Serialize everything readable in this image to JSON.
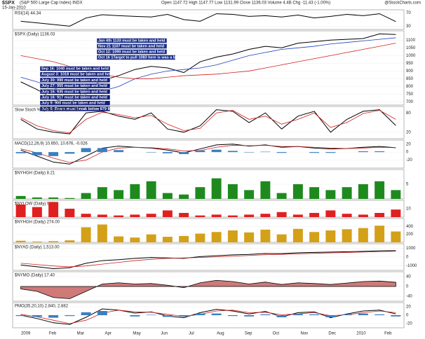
{
  "header": {
    "symbol": "$SPX",
    "name": "(S&P 500 Large Cap Index) INDX",
    "date": "15-Jan-2010",
    "quote": "Open 1147.72  High 1147.77  Low 1131.99  Close 1136.03  Volume 4.4B  Chg -11.43 (-1.00%)",
    "source": "@StockCharts.com"
  },
  "x_axis": {
    "labels": [
      "2009",
      "Feb",
      "Mar",
      "Apr",
      "May",
      "Jun",
      "Jul",
      "Aug",
      "Sep",
      "Oct",
      "Nov",
      "Dec",
      "2010",
      "Feb"
    ]
  },
  "chart_data": [
    {
      "type": "line",
      "title": "RSI(14) 44.34",
      "ylim": [
        20,
        80
      ],
      "yticks": [
        30,
        70
      ],
      "series": [
        {
          "color": "#000000",
          "values": [
            45,
            40,
            35,
            30,
            55,
            65,
            62,
            60,
            58,
            66,
            50,
            45,
            68,
            66,
            60,
            62,
            58,
            64,
            55,
            60,
            66,
            62,
            68,
            44
          ]
        }
      ]
    },
    {
      "type": "line",
      "title": "$SPX (Daily) 1136.03",
      "ylim": [
        680,
        1160
      ],
      "yticks": [
        700,
        750,
        800,
        850,
        900,
        950,
        1000,
        1050,
        1100
      ],
      "series": [
        {
          "color": "#000000",
          "values": [
            830,
            780,
            720,
            690,
            780,
            840,
            870,
            910,
            930,
            920,
            890,
            960,
            990,
            1010,
            1040,
            1060,
            1050,
            1080,
            1090,
            1100,
            1105,
            1110,
            1140,
            1136
          ]
        },
        {
          "color": "#1f3fbf",
          "values": [
            860,
            830,
            790,
            760,
            750,
            770,
            800,
            850,
            880,
            900,
            910,
            920,
            940,
            970,
            1000,
            1020,
            1040,
            1050,
            1060,
            1075,
            1085,
            1095,
            1105,
            1115
          ]
        },
        {
          "color": "#d02020",
          "values": [
            1000,
            980,
            960,
            930,
            900,
            880,
            860,
            850,
            850,
            860,
            870,
            875,
            880,
            890,
            900,
            920,
            940,
            960,
            980,
            1000,
            1020,
            1040,
            1060,
            1080
          ]
        }
      ],
      "annotations": [
        "Jan 4th 1133 must be taken and held",
        "Nov 21 1107 must be taken and held",
        "Oct 12: 1090 must be taken and held",
        "Oct 16 1Target to pull 1083 here is was a battle ground",
        "Sep 16: 1040 must be taken and held",
        "August 3: 1018 must be taken and held",
        "July 30: 990 must be taken and held",
        "July 27: 955 must be taken and held",
        "July 16: 935 must be taken and held",
        "July 16: 917 must be taken and held",
        "July 9: 900 must be taken and held",
        "July 9: Bears must break below 879 885"
      ]
    },
    {
      "type": "line",
      "title": "Slow Stoch %K(14,3) 86.84, 41.24",
      "ylim": [
        0,
        100
      ],
      "yticks": [
        20,
        80
      ],
      "series": [
        {
          "color": "#000000",
          "values": [
            60,
            30,
            20,
            15,
            80,
            85,
            70,
            60,
            80,
            30,
            20,
            40,
            90,
            85,
            50,
            80,
            30,
            70,
            85,
            20,
            60,
            85,
            90,
            41
          ]
        },
        {
          "color": "#d02020",
          "values": [
            65,
            40,
            25,
            18,
            60,
            82,
            75,
            65,
            72,
            45,
            25,
            32,
            80,
            88,
            60,
            70,
            45,
            60,
            80,
            35,
            50,
            78,
            88,
            60
          ]
        }
      ]
    },
    {
      "type": "macd",
      "title": "MACD(12,26,9) 10.650, 10.676, -0.026",
      "ylim": [
        -40,
        30
      ],
      "yticks": [
        -20,
        0,
        20
      ],
      "series": [
        {
          "color": "#000000",
          "values": [
            5,
            -10,
            -25,
            -30,
            -10,
            10,
            15,
            12,
            10,
            5,
            -2,
            8,
            18,
            20,
            15,
            18,
            12,
            14,
            10,
            8,
            9,
            12,
            14,
            11
          ]
        },
        {
          "color": "#d02020",
          "values": [
            8,
            -2,
            -15,
            -26,
            -20,
            0,
            10,
            12,
            11,
            8,
            3,
            4,
            12,
            17,
            16,
            17,
            14,
            14,
            12,
            10,
            9,
            10,
            12,
            11
          ]
        },
        {
          "color": "#3a7fc0",
          "bars": true,
          "values": [
            -3,
            -8,
            -10,
            -4,
            10,
            10,
            5,
            0,
            -1,
            -3,
            -5,
            4,
            6,
            3,
            -1,
            1,
            -2,
            0,
            -2,
            -2,
            0,
            2,
            2,
            0
          ]
        }
      ]
    },
    {
      "type": "bar",
      "title": "$NYHGH (Daily) 8.21",
      "ylim": [
        0,
        10
      ],
      "yticks": [
        5
      ],
      "series": [
        {
          "color": "#1e8a1e",
          "values": [
            1,
            0.5,
            0.5,
            0.3,
            2,
            4,
            3,
            5,
            6,
            2,
            1.5,
            4,
            7,
            5,
            3,
            6,
            2,
            5,
            4,
            3,
            4,
            5,
            6,
            3
          ]
        }
      ]
    },
    {
      "type": "bar",
      "title": "$NYLOW (Daily) 9.44",
      "ylim": [
        0,
        20
      ],
      "yticks": [
        10
      ],
      "series": [
        {
          "color": "#e02020",
          "values": [
            15,
            12,
            18,
            10,
            4,
            3,
            2,
            3,
            4,
            8,
            5,
            2,
            3,
            2,
            3,
            4,
            6,
            3,
            5,
            8,
            4,
            3,
            5,
            9
          ]
        }
      ]
    },
    {
      "type": "bar",
      "title": "$NYHGH (Daily) 274.00",
      "ylim": [
        0,
        600
      ],
      "yticks": [
        200,
        400
      ],
      "series": [
        {
          "color": "#d4a017",
          "values": [
            40,
            20,
            30,
            50,
            380,
            450,
            150,
            120,
            200,
            140,
            160,
            220,
            260,
            300,
            250,
            320,
            200,
            340,
            260,
            300,
            330,
            360,
            420,
            274
          ]
        }
      ]
    },
    {
      "type": "line",
      "title": "$NYAD (Daily) 1,513.00",
      "ylim": [
        -1500,
        1500
      ],
      "yticks": [
        -1000,
        0,
        1000
      ],
      "series": [
        {
          "color": "#000000",
          "values": [
            -900,
            -1100,
            -1300,
            -1200,
            -700,
            -400,
            -300,
            -150,
            -50,
            -100,
            -150,
            50,
            150,
            250,
            300,
            400,
            380,
            480,
            520,
            560,
            600,
            640,
            700,
            720
          ]
        },
        {
          "color": "#d02020",
          "values": [
            -700,
            -850,
            -1000,
            -1100,
            -1000,
            -800,
            -600,
            -400,
            -250,
            -150,
            -100,
            -50,
            20,
            100,
            180,
            260,
            310,
            360,
            420,
            470,
            520,
            560,
            610,
            660
          ]
        }
      ]
    },
    {
      "type": "area",
      "title": "$NYMO (Daily) 17.40",
      "ylim": [
        -60,
        60
      ],
      "yticks": [
        -40,
        0,
        40
      ],
      "series": [
        {
          "color": "#b02020",
          "values": [
            -10,
            -20,
            -45,
            -50,
            -20,
            10,
            15,
            10,
            12,
            5,
            -5,
            15,
            25,
            20,
            10,
            18,
            8,
            15,
            12,
            8,
            14,
            20,
            22,
            17
          ]
        }
      ]
    },
    {
      "type": "macd",
      "title": "PMO(35,20,10) 2.840, 2.882",
      "ylim": [
        -30,
        30
      ],
      "yticks": [
        -20,
        0,
        20
      ],
      "series": [
        {
          "color": "#000000",
          "values": [
            0,
            -8,
            -18,
            -22,
            -5,
            15,
            12,
            5,
            8,
            -2,
            -6,
            6,
            14,
            10,
            3,
            9,
            -4,
            6,
            8,
            -6,
            3,
            10,
            12,
            3
          ]
        },
        {
          "color": "#d02020",
          "values": [
            2,
            -4,
            -12,
            -20,
            -12,
            5,
            12,
            8,
            7,
            2,
            -3,
            2,
            10,
            12,
            6,
            7,
            1,
            3,
            6,
            -1,
            1,
            6,
            10,
            6
          ]
        },
        {
          "color": "#3a7fc0",
          "bars": true,
          "values": [
            -2,
            -4,
            -6,
            -2,
            7,
            10,
            0,
            -3,
            1,
            -4,
            -3,
            4,
            4,
            -2,
            -3,
            2,
            -5,
            3,
            2,
            -5,
            2,
            4,
            2,
            -3
          ]
        }
      ]
    }
  ]
}
